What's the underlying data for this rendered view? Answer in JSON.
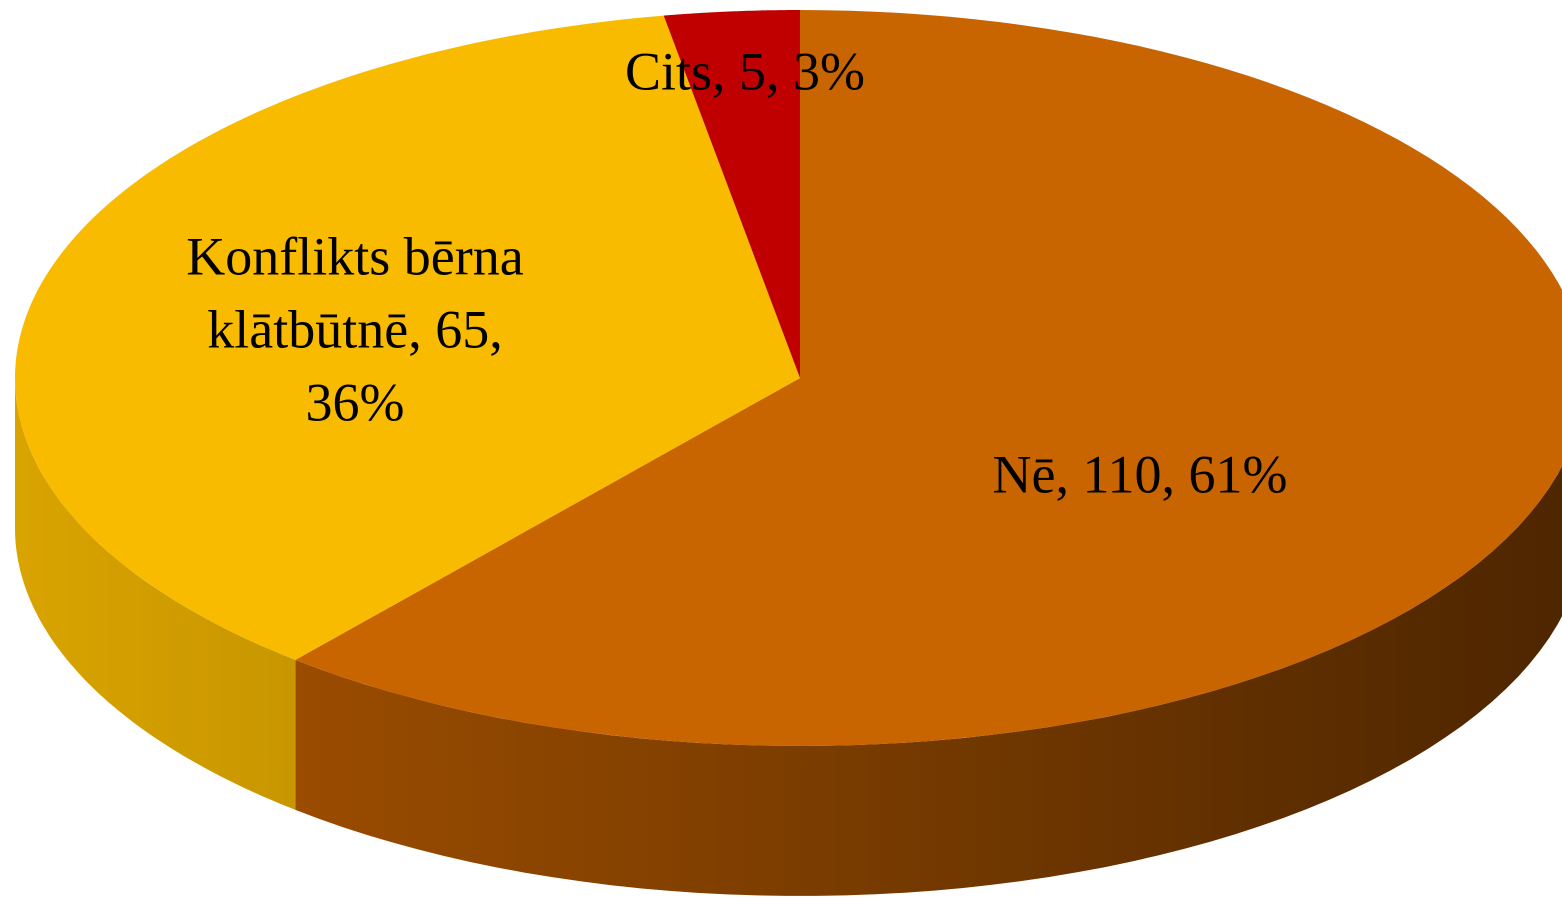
{
  "chart_data": {
    "type": "pie",
    "values": [
      110,
      65,
      5
    ],
    "value_labels": [
      "Nē, 110, 61%",
      "Konflikts bērna klātbūtnē, 65, 36%",
      "Cits, 5, 3%"
    ],
    "colors": [
      "#c96500",
      "#f9bb00",
      "#c00000"
    ],
    "side_colors": [
      [
        "#9a4c00",
        "#4c2500"
      ],
      [
        "#d9a400",
        "#c89600"
      ],
      [
        "#8a0000",
        "#700000"
      ]
    ]
  }
}
